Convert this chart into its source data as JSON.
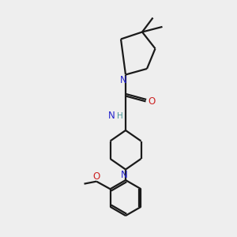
{
  "background_color": "#eeeeee",
  "bond_color": "#1a1a1a",
  "N_color": "#2222cc",
  "O_color": "#cc2222",
  "H_color": "#4a9999",
  "line_width": 1.6,
  "figsize": [
    3.0,
    3.0
  ],
  "dpi": 100,
  "xlim": [
    0,
    10
  ],
  "ylim": [
    0,
    10
  ]
}
